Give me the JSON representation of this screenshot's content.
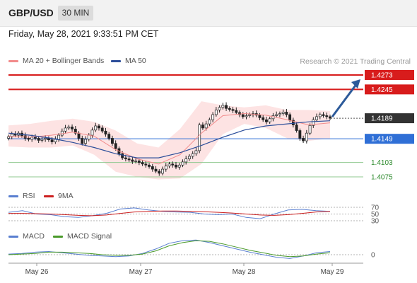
{
  "header": {
    "symbol": "GBP/USD",
    "timeframe": "30 MIN"
  },
  "datetime": "Friday, May 28, 2021 9:33:51 PM CET",
  "copyright": "Research © 2021 Trading Central",
  "legend": {
    "ma_bb": {
      "label": "MA 20 + Bollinger Bands",
      "color": "#f28b8b"
    },
    "ma50": {
      "label": "MA 50",
      "color": "#2c4e9a"
    },
    "rsi": {
      "label": "RSI",
      "color": "#5a7fd0"
    },
    "ma9": {
      "label": "9MA",
      "color": "#cc2020"
    },
    "macd": {
      "label": "MACD",
      "color": "#5a7fd0"
    },
    "macd_signal": {
      "label": "MACD Signal",
      "color": "#4a9a2a"
    }
  },
  "chart_data": [
    {
      "type": "candlestick",
      "instrument": "GBP/USD",
      "timeframe": "30 MIN",
      "x_labels": [
        "May 26",
        "May 27",
        "May 28",
        "May 29"
      ],
      "price_levels": [
        {
          "value": 1.4273,
          "kind": "resistance",
          "color": "#d81c1c"
        },
        {
          "value": 1.4245,
          "kind": "resistance",
          "color": "#d81c1c"
        },
        {
          "value": 1.4189,
          "kind": "last",
          "color": "#333333"
        },
        {
          "value": 1.4149,
          "kind": "pivot",
          "color": "#2f6fd6"
        },
        {
          "value": 1.4103,
          "kind": "support",
          "color": "#2d8a2d"
        },
        {
          "value": 1.4075,
          "kind": "support",
          "color": "#2d8a2d"
        }
      ],
      "ylim": [
        1.4045,
        1.43
      ],
      "close": [
        1.4153,
        1.4158,
        1.4156,
        1.416,
        1.4155,
        1.415,
        1.4148,
        1.4152,
        1.415,
        1.4146,
        1.4148,
        1.415,
        1.4147,
        1.4143,
        1.4148,
        1.4156,
        1.4164,
        1.417,
        1.4172,
        1.4168,
        1.416,
        1.415,
        1.414,
        1.4148,
        1.4156,
        1.4166,
        1.4174,
        1.417,
        1.4164,
        1.4158,
        1.415,
        1.414,
        1.413,
        1.412,
        1.4112,
        1.411,
        1.4108,
        1.4105,
        1.4106,
        1.4103,
        1.41,
        1.4098,
        1.4095,
        1.409,
        1.4086,
        1.4082,
        1.409,
        1.4096,
        1.41,
        1.4098,
        1.4094,
        1.4098,
        1.4104,
        1.411,
        1.4115,
        1.412,
        1.4126,
        1.4176,
        1.417,
        1.4178,
        1.4186,
        1.4196,
        1.4205,
        1.421,
        1.4214,
        1.4208,
        1.4206,
        1.4204,
        1.42,
        1.4196,
        1.4192,
        1.4194,
        1.4196,
        1.4198,
        1.4195,
        1.419,
        1.4186,
        1.4182,
        1.4188,
        1.4194,
        1.4196,
        1.4198,
        1.4201,
        1.4196,
        1.4185,
        1.4176,
        1.4165,
        1.415,
        1.4145,
        1.416,
        1.4175,
        1.4186,
        1.4192,
        1.4196,
        1.4194,
        1.4192,
        1.4189
      ],
      "ma50": [
        1.416,
        1.4156,
        1.415,
        1.4142,
        1.4132,
        1.412,
        1.4112,
        1.4112,
        1.4122,
        1.4136,
        1.4152,
        1.4166,
        1.4174,
        1.4178,
        1.4182,
        1.4184
      ],
      "ma20": [
        1.4154,
        1.4152,
        1.4156,
        1.4162,
        1.4154,
        1.4128,
        1.411,
        1.41,
        1.4118,
        1.416,
        1.4194,
        1.4198,
        1.4195,
        1.4186,
        1.4176,
        1.418
      ],
      "bb_upper": [
        1.4175,
        1.4178,
        1.4184,
        1.4188,
        1.4182,
        1.4165,
        1.414,
        1.4132,
        1.4168,
        1.4222,
        1.4214,
        1.421,
        1.4214,
        1.4205,
        1.4205,
        1.4203
      ],
      "bb_lower": [
        1.4134,
        1.4132,
        1.4132,
        1.4136,
        1.4118,
        1.4085,
        1.4075,
        1.407,
        1.4072,
        1.41,
        1.4158,
        1.4178,
        1.417,
        1.415,
        1.4145,
        1.415
      ],
      "projection": {
        "from": 1.4189,
        "to": 1.4273
      }
    },
    {
      "type": "line",
      "title": "RSI",
      "levels": [
        70,
        50,
        30
      ],
      "rsi": [
        55,
        60,
        50,
        48,
        42,
        40,
        45,
        52,
        65,
        68,
        62,
        58,
        56,
        55,
        50,
        48,
        50,
        40,
        36,
        50,
        62,
        64,
        60,
        58
      ],
      "ma9": [
        52,
        52,
        51,
        50,
        48,
        46,
        45,
        47,
        52,
        56,
        58,
        59,
        59,
        58,
        57,
        55,
        53,
        50,
        47,
        46,
        48,
        52,
        56,
        58
      ]
    },
    {
      "type": "line",
      "title": "MACD",
      "levels": [
        0
      ],
      "macd": [
        0.0001,
        0.0002,
        0.0004,
        0.0005,
        0.0003,
        0.0001,
        -0.0001,
        -0.0002,
        -0.0003,
        -0.0002,
        0.0002,
        0.0009,
        0.0018,
        0.0022,
        0.0023,
        0.0019,
        0.0014,
        0.0009,
        0.0004,
        0.0,
        -0.0004,
        -0.0006,
        -0.0002,
        0.0003,
        0.0005
      ],
      "macd_signal": [
        0.0,
        0.0001,
        0.0002,
        0.0004,
        0.0004,
        0.0003,
        0.0002,
        0.0,
        -0.0001,
        -0.0001,
        0.0001,
        0.0006,
        0.0014,
        0.0019,
        0.0022,
        0.0021,
        0.0017,
        0.0012,
        0.0007,
        0.0003,
        -0.0001,
        -0.0003,
        -0.0002,
        0.0001,
        0.0003
      ]
    }
  ],
  "rsi_ticks": [
    "70",
    "50",
    "30"
  ],
  "macd_ticks": [
    "0"
  ]
}
